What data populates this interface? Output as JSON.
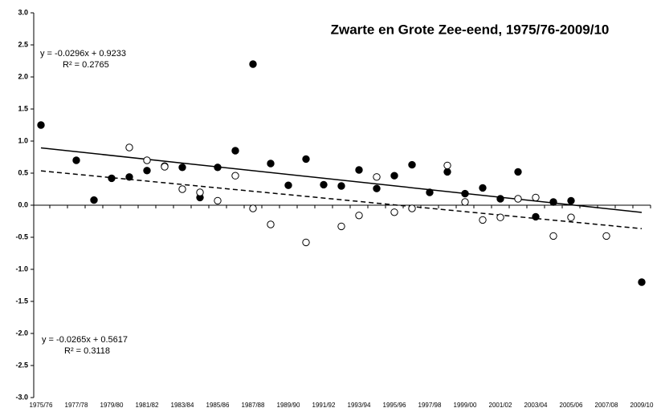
{
  "chart_data": {
    "type": "scatter",
    "title": "Zwarte en Grote Zee-eend, 1975/76-2009/10",
    "categories": [
      "1975/76",
      null,
      "1977/78",
      null,
      "1979/80",
      null,
      "1981/82",
      null,
      "1983/84",
      null,
      "1985/86",
      null,
      "1987/88",
      null,
      "1989/90",
      null,
      "1991/92",
      null,
      "1993/94",
      null,
      "1995/96",
      null,
      "1997/98",
      null,
      "1999/00",
      null,
      "2001/02",
      null,
      "2003/04",
      null,
      "2005/06",
      null,
      "2007/08",
      null,
      "2009/10"
    ],
    "series": [
      {
        "color": "#000000",
        "marker": "filled",
        "values": [
          1.25,
          null,
          0.7,
          0.08,
          0.42,
          0.44,
          0.54,
          0.61,
          0.59,
          0.12,
          0.59,
          0.85,
          2.2,
          0.65,
          0.31,
          0.72,
          0.32,
          0.3,
          0.55,
          0.26,
          0.46,
          0.63,
          0.2,
          0.52,
          0.18,
          0.27,
          0.1,
          0.52,
          -0.18,
          0.05,
          0.07,
          null,
          null,
          null,
          -1.2
        ]
      },
      {
        "color": "#000000",
        "marker": "open",
        "values": [
          null,
          null,
          null,
          null,
          null,
          0.9,
          0.7,
          0.6,
          0.25,
          0.2,
          0.07,
          0.46,
          -0.05,
          -0.3,
          null,
          -0.58,
          null,
          -0.33,
          -0.16,
          0.44,
          -0.11,
          -0.05,
          null,
          0.62,
          0.05,
          -0.23,
          -0.19,
          0.1,
          0.12,
          -0.48,
          -0.19,
          null,
          -0.48,
          null,
          null
        ]
      }
    ],
    "trendlines": [
      {
        "equation": "y = -0.0296x + 0.9233",
        "r2": "R² = 0.2765",
        "slope": -0.0296,
        "intercept": 0.9233,
        "style": "solid"
      },
      {
        "equation": "y = -0.0265x + 0.5617",
        "r2": "R² = 0.3118",
        "slope": -0.0265,
        "intercept": 0.5617,
        "style": "dashed"
      }
    ],
    "ylim": [
      -3,
      3
    ],
    "yticks": [
      {
        "value": 3,
        "label": "3.0"
      },
      {
        "value": 2.5,
        "label": "2.5"
      },
      {
        "value": 2,
        "label": "2.0"
      },
      {
        "value": 1.5,
        "label": "1.5"
      },
      {
        "value": 1,
        "label": "1.0"
      },
      {
        "value": 0.5,
        "label": "0.5"
      },
      {
        "value": 0,
        "label": "0.0"
      },
      {
        "value": -0.5,
        "label": "-0.5"
      },
      {
        "value": -1,
        "label": "-1.0"
      },
      {
        "value": -1.5,
        "label": "-1.5"
      },
      {
        "value": -2,
        "label": "-2.0"
      },
      {
        "value": -2.5,
        "label": "-2.5"
      },
      {
        "value": -3,
        "label": "-3.0"
      }
    ]
  }
}
